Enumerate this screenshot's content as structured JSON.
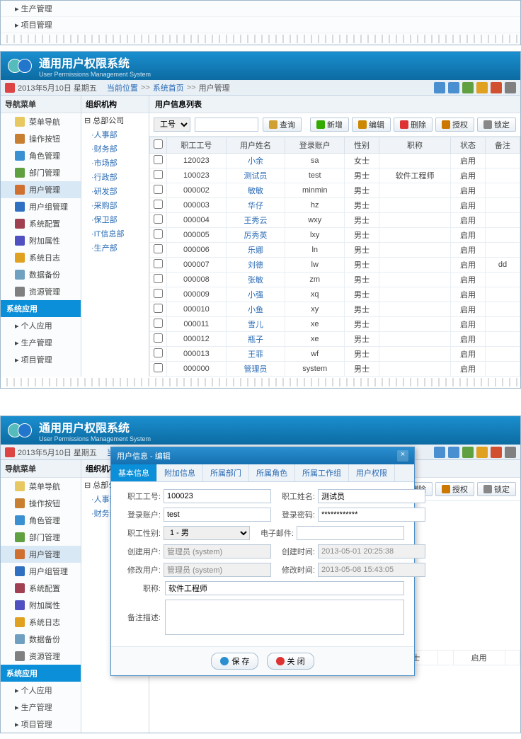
{
  "fragment_top_items": [
    "生产管理",
    "项目管理"
  ],
  "app": {
    "title": "通用用户权限系统",
    "subtitle": "User Permissions Management System"
  },
  "date": "2013年5月10日 星期五",
  "breadcrumb": {
    "label": "当前位置",
    "home": "系统首页",
    "page": "用户管理"
  },
  "sidebar": {
    "head": "导航菜单",
    "items": [
      {
        "label": "菜单导航",
        "icon": "#e8c860"
      },
      {
        "label": "操作按钮",
        "icon": "#c88030"
      },
      {
        "label": "角色管理",
        "icon": "#3a90d0"
      },
      {
        "label": "部门管理",
        "icon": "#60a040"
      },
      {
        "label": "用户管理",
        "icon": "#d07030",
        "active": true
      },
      {
        "label": "用户组管理",
        "icon": "#3070c0"
      },
      {
        "label": "系统配置",
        "icon": "#a04050"
      },
      {
        "label": "附加属性",
        "icon": "#5050c0"
      },
      {
        "label": "系统日志",
        "icon": "#e0a020"
      },
      {
        "label": "数据备份",
        "icon": "#70a0c0"
      },
      {
        "label": "资源管理",
        "icon": "#808080"
      }
    ],
    "section": "系统应用",
    "extra": [
      "个人应用",
      "生产管理",
      "项目管理"
    ]
  },
  "tree": {
    "head": "组织机构",
    "root": "总部公司",
    "items": [
      "人事部",
      "财务部",
      "市场部",
      "行政部",
      "研发部",
      "采购部",
      "保卫部",
      "IT信息部",
      "生产部"
    ]
  },
  "main": {
    "head": "用户信息列表",
    "search_field": "工号",
    "search_btn": "查询",
    "buttons": {
      "add": "新增",
      "edit": "编辑",
      "del": "删除",
      "auth": "授权",
      "lock": "锁定"
    },
    "columns": [
      "",
      "职工工号",
      "用户姓名",
      "登录账户",
      "性别",
      "职称",
      "状态",
      "备注"
    ],
    "rows": [
      {
        "id": "120023",
        "name": "小余",
        "acct": "sa",
        "sex": "女士",
        "title": "",
        "status": "启用",
        "note": ""
      },
      {
        "id": "100023",
        "name": "测试员",
        "acct": "test",
        "sex": "男士",
        "title": "软件工程师",
        "status": "启用",
        "note": ""
      },
      {
        "id": "000002",
        "name": "敏敏",
        "acct": "minmin",
        "sex": "男士",
        "title": "",
        "status": "启用",
        "note": ""
      },
      {
        "id": "000003",
        "name": "华仔",
        "acct": "hz",
        "sex": "男士",
        "title": "",
        "status": "启用",
        "note": ""
      },
      {
        "id": "000004",
        "name": "王秀云",
        "acct": "wxy",
        "sex": "男士",
        "title": "",
        "status": "启用",
        "note": ""
      },
      {
        "id": "000005",
        "name": "厉秀英",
        "acct": "lxy",
        "sex": "男士",
        "title": "",
        "status": "启用",
        "note": ""
      },
      {
        "id": "000006",
        "name": "乐娜",
        "acct": "ln",
        "sex": "男士",
        "title": "",
        "status": "启用",
        "note": ""
      },
      {
        "id": "000007",
        "name": "刘德",
        "acct": "lw",
        "sex": "男士",
        "title": "",
        "status": "启用",
        "note": "dd"
      },
      {
        "id": "000008",
        "name": "张敏",
        "acct": "zm",
        "sex": "男士",
        "title": "",
        "status": "启用",
        "note": ""
      },
      {
        "id": "000009",
        "name": "小强",
        "acct": "xq",
        "sex": "男士",
        "title": "",
        "status": "启用",
        "note": ""
      },
      {
        "id": "000010",
        "name": "小鱼",
        "acct": "xy",
        "sex": "男士",
        "title": "",
        "status": "启用",
        "note": ""
      },
      {
        "id": "000011",
        "name": "雪儿",
        "acct": "xe",
        "sex": "男士",
        "title": "",
        "status": "启用",
        "note": ""
      },
      {
        "id": "000012",
        "name": "瓶子",
        "acct": "xe",
        "sex": "男士",
        "title": "",
        "status": "启用",
        "note": ""
      },
      {
        "id": "000013",
        "name": "王菲",
        "acct": "wf",
        "sex": "男士",
        "title": "",
        "status": "启用",
        "note": ""
      },
      {
        "id": "000000",
        "name": "管理员",
        "acct": "system",
        "sex": "男士",
        "title": "",
        "status": "启用",
        "note": ""
      }
    ]
  },
  "top_icon_colors": [
    "#4a90d0",
    "#4a90d0",
    "#60a040",
    "#e0a020",
    "#d05030",
    "#808080"
  ],
  "dialog": {
    "title": "用户信息 - 编辑",
    "tabs": [
      "基本信息",
      "附加信息",
      "所属部门",
      "所属角色",
      "所属工作组",
      "用户权限"
    ],
    "fields": {
      "emp_no_lbl": "职工工号:",
      "emp_no": "100023",
      "emp_name_lbl": "职工姓名:",
      "emp_name": "测试员",
      "login_lbl": "登录账户:",
      "login": "test",
      "pwd_lbl": "登录密码:",
      "pwd": "************",
      "sex_lbl": "职工性别:",
      "sex": "1 - 男",
      "email_lbl": "电子邮件:",
      "email": "",
      "create_by_lbl": "创建用户:",
      "create_by": "管理员 (system)",
      "create_at_lbl": "创建时间:",
      "create_at": "2013-05-01 20:25:38",
      "mod_by_lbl": "修改用户:",
      "mod_by": "管理员 (system)",
      "mod_at_lbl": "修改时间:",
      "mod_at": "2013-05-08 15:43:05",
      "title_lbl": "职称:",
      "title": "软件工程师",
      "note_lbl": "备注描述:"
    },
    "save": "保 存",
    "close": "关 闭"
  },
  "row2": {
    "id": "000000",
    "name": "管理员",
    "acct": "system",
    "sex": "男士",
    "status": "启用"
  }
}
